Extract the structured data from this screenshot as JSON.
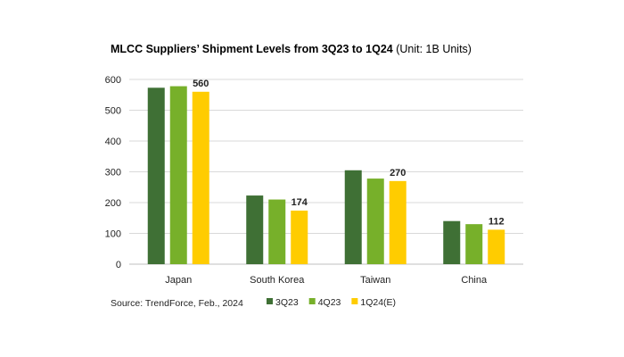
{
  "chart_data": {
    "type": "bar",
    "title_bold": "MLCC Suppliers’ Shipment Levels from 3Q23 to 1Q24",
    "title_suffix": " (Unit: 1B Units)",
    "categories": [
      "Japan",
      "South Korea",
      "Taiwan",
      "China"
    ],
    "series": [
      {
        "name": "3Q23",
        "color": "#3f7035",
        "values": [
          573,
          223,
          305,
          140
        ]
      },
      {
        "name": "4Q23",
        "color": "#77b02a",
        "values": [
          578,
          210,
          278,
          130
        ]
      },
      {
        "name": "1Q24(E)",
        "color": "#ffcc00",
        "values": [
          560,
          174,
          270,
          112
        ]
      }
    ],
    "data_labels": {
      "series": "1Q24(E)",
      "values": [
        "560",
        "174",
        "270",
        "112"
      ]
    },
    "ylim": [
      0,
      600
    ],
    "yticks": [
      0,
      100,
      200,
      300,
      400,
      500,
      600
    ],
    "grid": true,
    "legend_position": "bottom"
  },
  "source": "Source: TrendForce, Feb., 2024"
}
